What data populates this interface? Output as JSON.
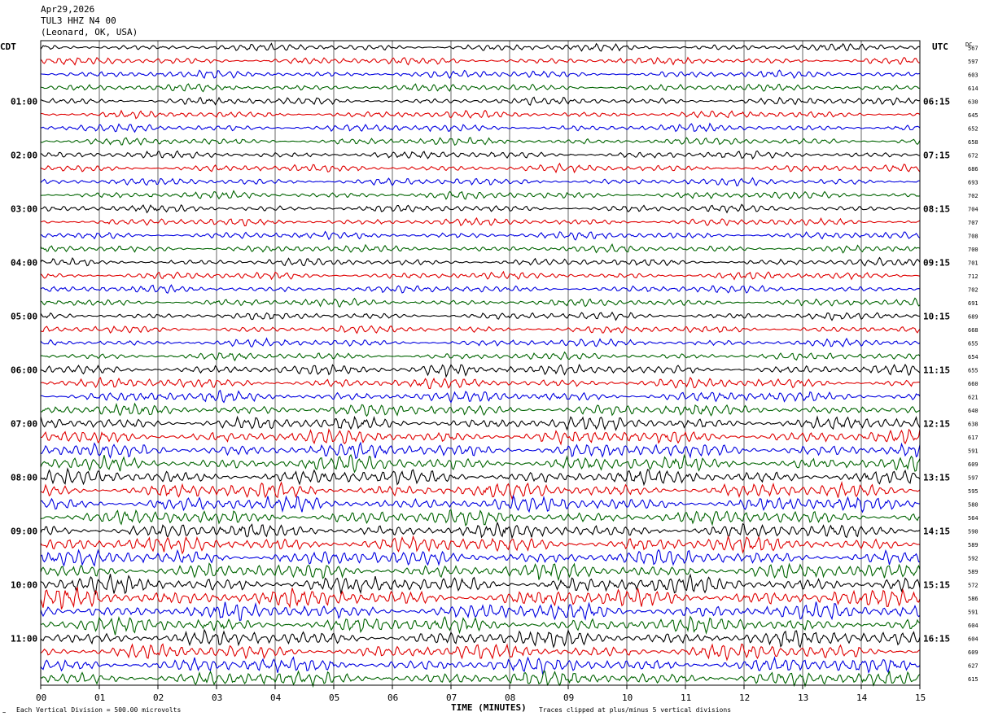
{
  "header": {
    "date": "Apr29,2026",
    "station": "TUL3 HHZ N4 00",
    "location": "(Leonard, OK, USA)"
  },
  "labels": {
    "left_tz": "CDT",
    "right_tz": "UTC",
    "dc": "DC",
    "xlabel": "TIME (MINUTES)",
    "scale_note": "Each Vertical Division =  500.00 microvolts",
    "clip_note": "Traces clipped at plus/minus 5 vertical divisions"
  },
  "colors": [
    "#000000",
    "#e00000",
    "#0000e0",
    "#006400"
  ],
  "chart_data": {
    "type": "line",
    "title": "TUL3 HHZ N4 00",
    "xlabel": "TIME (MINUTES)",
    "xlim": [
      0,
      15
    ],
    "x_ticks": [
      "00",
      "01",
      "02",
      "03",
      "04",
      "05",
      "06",
      "07",
      "08",
      "09",
      "10",
      "11",
      "12",
      "13",
      "14",
      "15"
    ],
    "trace_count": 48,
    "trace_minutes": 15,
    "left_time_labels": [
      {
        "trace": 4,
        "label": "01:00"
      },
      {
        "trace": 8,
        "label": "02:00"
      },
      {
        "trace": 12,
        "label": "03:00"
      },
      {
        "trace": 16,
        "label": "04:00"
      },
      {
        "trace": 20,
        "label": "05:00"
      },
      {
        "trace": 24,
        "label": "06:00"
      },
      {
        "trace": 28,
        "label": "07:00"
      },
      {
        "trace": 32,
        "label": "08:00"
      },
      {
        "trace": 36,
        "label": "09:00"
      },
      {
        "trace": 40,
        "label": "10:00"
      },
      {
        "trace": 44,
        "label": "11:00"
      }
    ],
    "right_time_labels": [
      {
        "trace": 4,
        "label": "06:15"
      },
      {
        "trace": 8,
        "label": "07:15"
      },
      {
        "trace": 12,
        "label": "08:15"
      },
      {
        "trace": 16,
        "label": "09:15"
      },
      {
        "trace": 20,
        "label": "10:15"
      },
      {
        "trace": 24,
        "label": "11:15"
      },
      {
        "trace": 28,
        "label": "12:15"
      },
      {
        "trace": 32,
        "label": "13:15"
      },
      {
        "trace": 36,
        "label": "14:15"
      },
      {
        "trace": 40,
        "label": "15:15"
      },
      {
        "trace": 44,
        "label": "16:15"
      }
    ],
    "dc_offsets": [
      567,
      597,
      603,
      614,
      630,
      645,
      652,
      658,
      672,
      686,
      693,
      702,
      704,
      707,
      708,
      700,
      701,
      712,
      702,
      691,
      689,
      668,
      655,
      654,
      655,
      660,
      621,
      640,
      638,
      617,
      591,
      609,
      597,
      595,
      580,
      564,
      590,
      589,
      592,
      589,
      572,
      586,
      591,
      604,
      604,
      609,
      627,
      615
    ],
    "trace_amplitude_divisions": [
      1.0,
      1.0,
      1.0,
      1.0,
      1.0,
      1.0,
      1.0,
      1.0,
      1.0,
      1.0,
      1.0,
      1.0,
      1.0,
      1.0,
      1.0,
      1.0,
      1.0,
      1.0,
      1.0,
      1.0,
      1.0,
      1.0,
      1.0,
      1.0,
      1.3,
      1.4,
      1.5,
      1.6,
      1.8,
      1.9,
      2.0,
      2.0,
      2.0,
      2.0,
      2.0,
      2.0,
      2.0,
      2.1,
      2.1,
      2.1,
      2.3,
      2.4,
      2.2,
      2.1,
      2.1,
      2.0,
      2.0,
      2.0
    ],
    "events": [
      {
        "trace": 24,
        "minute_start": 6.5,
        "minute_end": 8.1,
        "amplitude_divisions": 4.0
      },
      {
        "trace": 41,
        "minute_start": 0.0,
        "minute_end": 2.5,
        "amplitude_divisions": 4.0
      },
      {
        "trace": 42,
        "minute_start": 0.0,
        "minute_end": 0.3,
        "amplitude_divisions": 5.0
      }
    ],
    "grid": true
  }
}
